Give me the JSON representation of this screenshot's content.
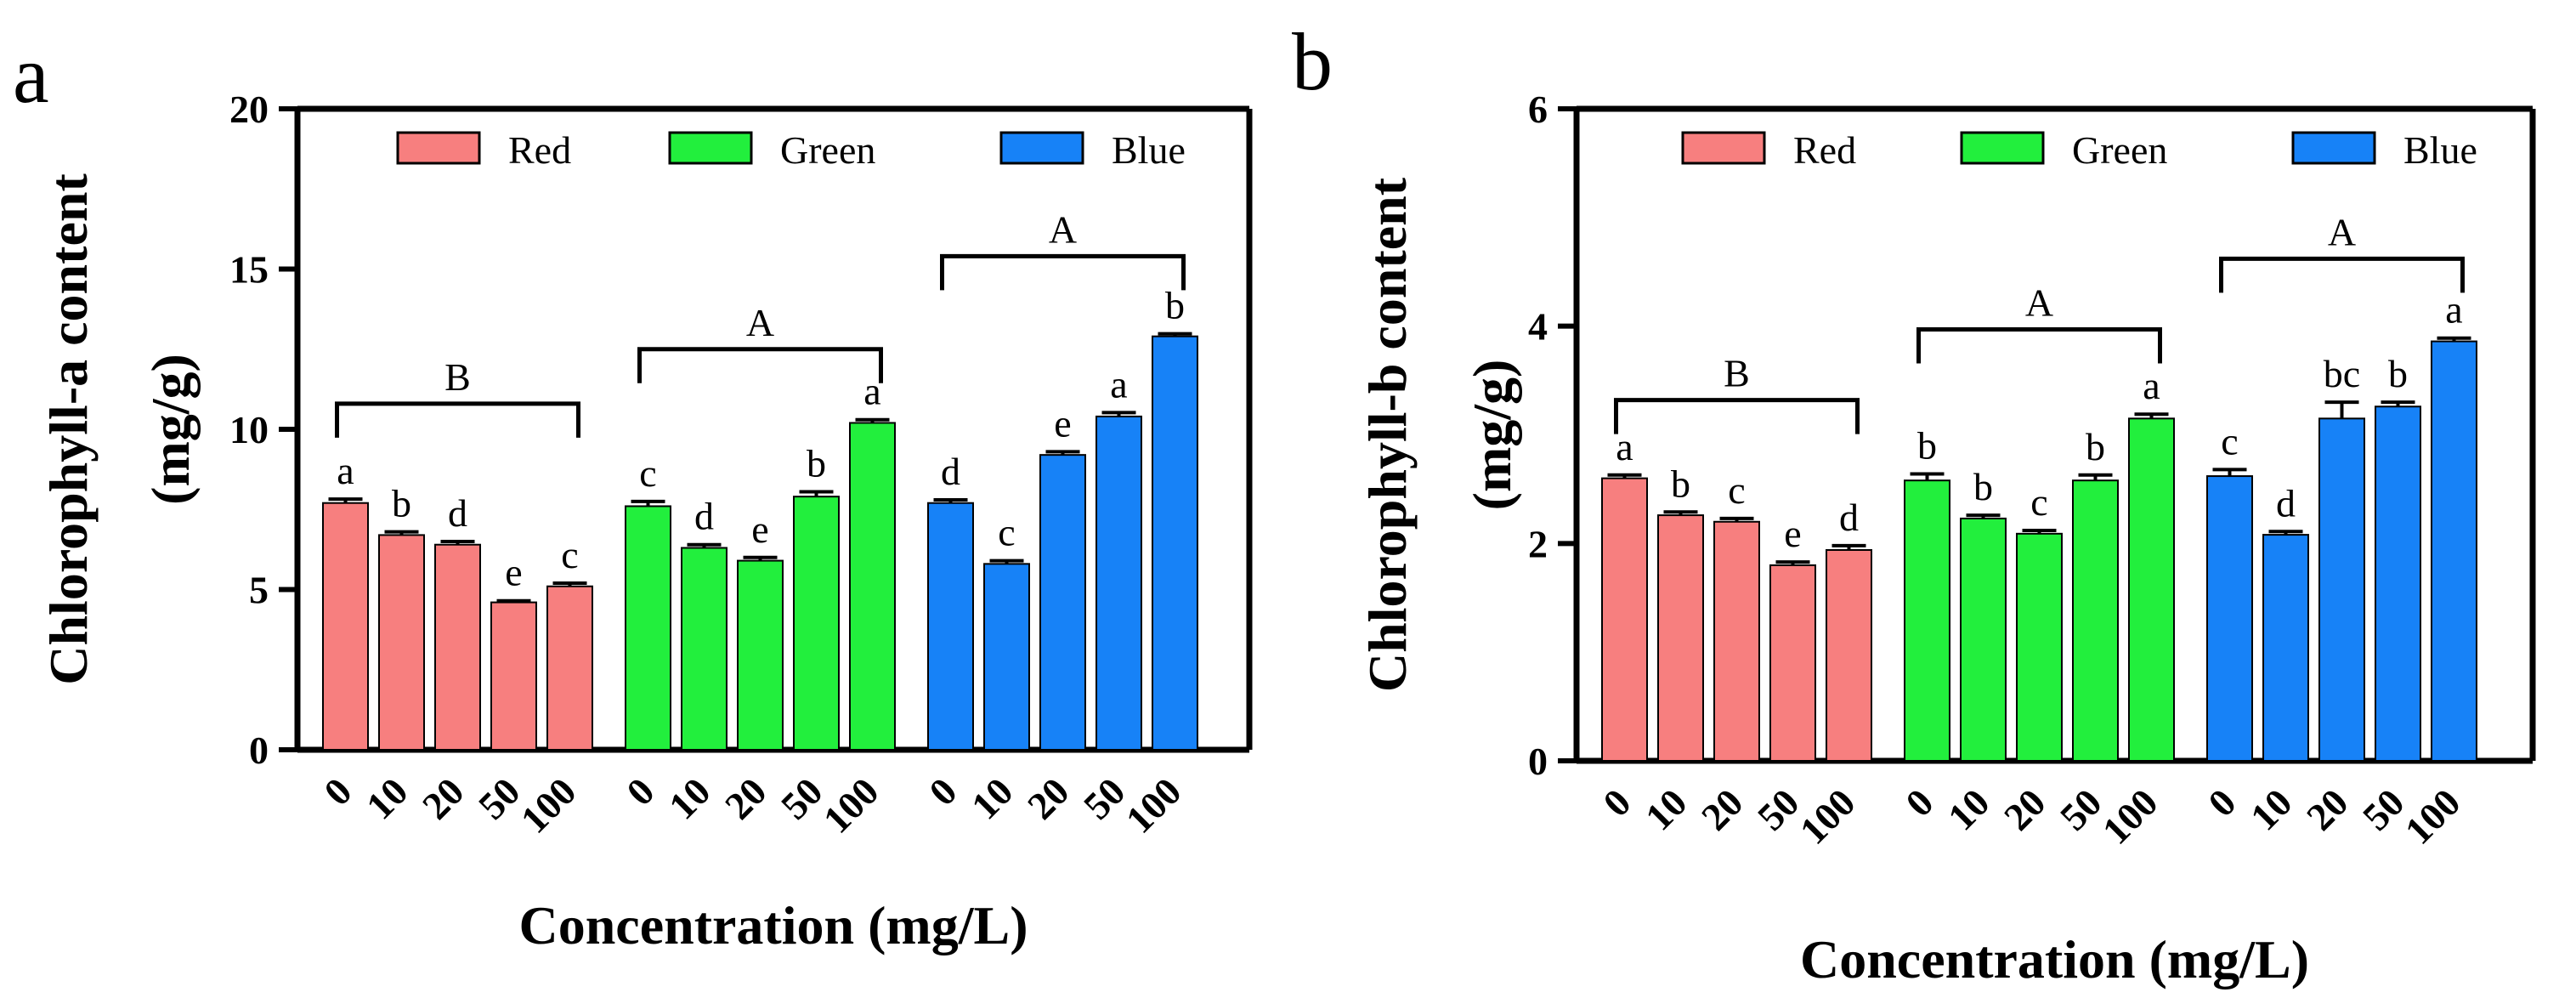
{
  "colors": {
    "Red": "#f77f7f",
    "Green": "#22ef3d",
    "Blue": "#1782f7"
  },
  "chart_data": [
    {
      "type": "bar",
      "panel": "a",
      "title": "",
      "xlabel": "Concentration (mg/L)",
      "ylabel_lines": [
        "Chlorophyll-a content",
        "(mg/g)"
      ],
      "ylim": [
        0,
        20
      ],
      "yticks": [
        0,
        5,
        10,
        15,
        20
      ],
      "categories": [
        "0",
        "10",
        "20",
        "50",
        "100"
      ],
      "legend": [
        "Red",
        "Green",
        "Blue"
      ],
      "series": [
        {
          "name": "Red",
          "values": [
            7.7,
            6.7,
            6.4,
            4.6,
            5.1
          ],
          "errors": [
            0.12,
            0.1,
            0.1,
            0.05,
            0.1
          ],
          "letters": [
            "a",
            "b",
            "d",
            "e",
            "c"
          ]
        },
        {
          "name": "Green",
          "values": [
            7.6,
            6.3,
            5.9,
            7.9,
            10.2
          ],
          "errors": [
            0.15,
            0.1,
            0.1,
            0.15,
            0.1
          ],
          "letters": [
            "c",
            "d",
            "e",
            "b",
            "a"
          ]
        },
        {
          "name": "Blue",
          "values": [
            7.7,
            5.8,
            9.2,
            10.4,
            12.9
          ],
          "errors": [
            0.1,
            0.1,
            0.1,
            0.12,
            0.08
          ],
          "letters": [
            "d",
            "c",
            "e",
            "a",
            "b"
          ]
        }
      ],
      "brackets": [
        {
          "label": "B",
          "y": 10.8
        },
        {
          "label": "A",
          "y": 12.5
        },
        {
          "label": "A",
          "y": 15.4
        }
      ]
    },
    {
      "type": "bar",
      "panel": "b",
      "title": "",
      "xlabel": "Concentration (mg/L)",
      "ylabel_lines": [
        "Chlorophyll-b content",
        "(mg/g)"
      ],
      "ylim": [
        0,
        6
      ],
      "yticks": [
        0,
        2,
        4,
        6
      ],
      "categories": [
        "0",
        "10",
        "20",
        "50",
        "100"
      ],
      "legend": [
        "Red",
        "Green",
        "Blue"
      ],
      "series": [
        {
          "name": "Red",
          "values": [
            2.6,
            2.26,
            2.2,
            1.8,
            1.94
          ],
          "errors": [
            0.03,
            0.03,
            0.03,
            0.03,
            0.04
          ],
          "letters": [
            "a",
            "b",
            "c",
            "e",
            "d"
          ]
        },
        {
          "name": "Green",
          "values": [
            2.58,
            2.23,
            2.09,
            2.58,
            3.15
          ],
          "errors": [
            0.06,
            0.03,
            0.03,
            0.05,
            0.04
          ],
          "letters": [
            "b",
            "b",
            "c",
            "b",
            "a"
          ]
        },
        {
          "name": "Blue",
          "values": [
            2.62,
            2.08,
            3.15,
            3.26,
            3.86
          ],
          "errors": [
            0.06,
            0.03,
            0.15,
            0.04,
            0.03
          ],
          "letters": [
            "c",
            "d",
            "bc",
            "b",
            "a"
          ]
        }
      ],
      "brackets": [
        {
          "label": "B",
          "y": 3.32
        },
        {
          "label": "A",
          "y": 3.97
        },
        {
          "label": "A",
          "y": 4.62
        }
      ]
    }
  ]
}
